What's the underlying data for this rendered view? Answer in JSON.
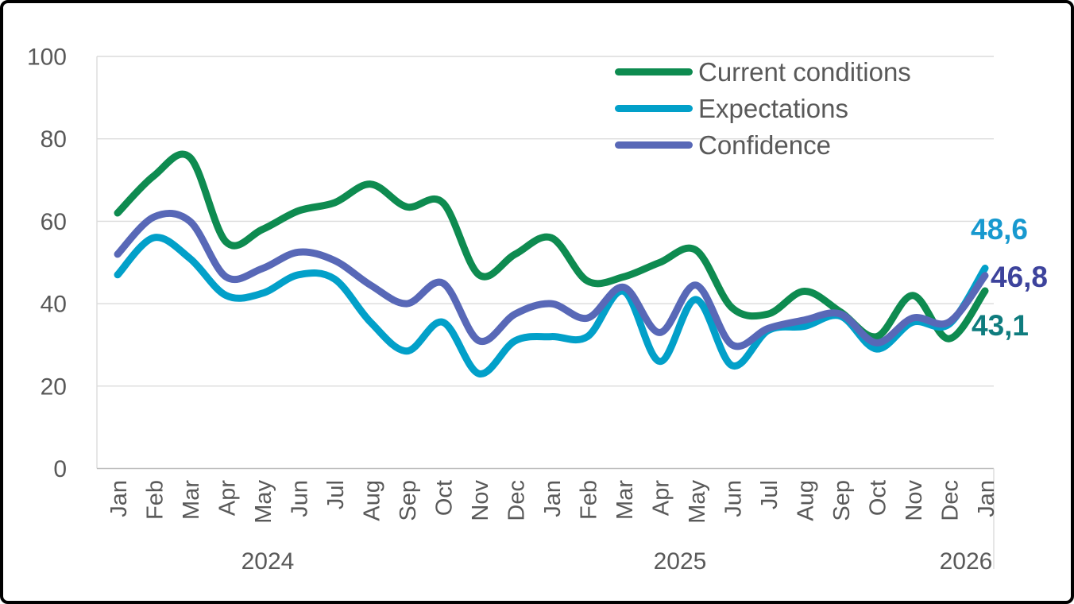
{
  "chart_data": {
    "type": "line",
    "title": "",
    "legend_position": "top-right",
    "grid": "horizontal",
    "x": {
      "months": [
        "Jan",
        "Feb",
        "Mar",
        "Apr",
        "May",
        "Jun",
        "Jul",
        "Aug",
        "Sep",
        "Oct",
        "Nov",
        "Dec",
        "Jan",
        "Feb",
        "Mar",
        "Apr",
        "May",
        "Jun",
        "Jul",
        "Aug",
        "Sep",
        "Oct",
        "Nov",
        "Dec",
        "Jan"
      ],
      "years": [
        "2024",
        "2025",
        "2026"
      ]
    },
    "y": {
      "ticks": [
        0,
        20,
        40,
        60,
        80,
        100
      ],
      "range": [
        0,
        100
      ]
    },
    "series": [
      {
        "name": "Current conditions",
        "color": "#0e8b50",
        "values": [
          62,
          71,
          75.5,
          55,
          58,
          62.5,
          64.5,
          69,
          63.5,
          64.5,
          47,
          52,
          56,
          45.5,
          46.5,
          50,
          53,
          39,
          37.5,
          43,
          38,
          32,
          42,
          31.5,
          43.1
        ]
      },
      {
        "name": "Expectations",
        "color": "#02a0c9",
        "values": [
          47,
          56,
          51,
          42,
          42.5,
          47,
          46,
          35.5,
          28.5,
          35.5,
          23,
          31,
          32,
          32,
          43,
          26,
          41,
          25,
          33.5,
          34.5,
          37,
          29,
          35.5,
          35,
          48.6
        ]
      },
      {
        "name": "Confidence",
        "color": "#5868b7",
        "values": [
          52,
          61,
          60,
          46.5,
          48.5,
          52.5,
          50.5,
          44.5,
          40,
          45,
          31,
          37.5,
          40,
          36.5,
          44,
          33,
          44.5,
          30,
          34,
          36,
          37.5,
          30.5,
          36.5,
          35.5,
          46.8
        ]
      }
    ],
    "end_labels": [
      {
        "text": "48,6",
        "series": "Expectations",
        "color": "#1899cf"
      },
      {
        "text": "46,8",
        "series": "Confidence",
        "color": "#3d439c"
      },
      {
        "text": "43,1",
        "series": "Current conditions",
        "color": "#0f7c7e"
      }
    ]
  },
  "colors": {
    "axis_text": "#595959",
    "gridline": "#dcdcdc",
    "axis_line": "#bfbfbf",
    "frame_border": "#000000"
  }
}
